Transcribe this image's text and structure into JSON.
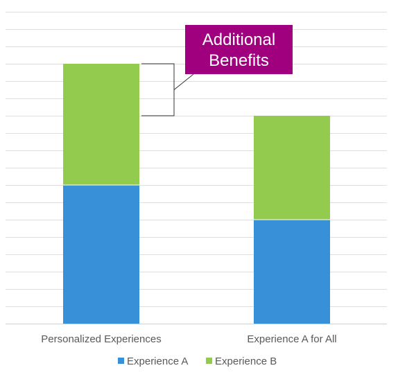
{
  "chart_data": {
    "type": "bar",
    "stacked": true,
    "categories": [
      "Personalized Experiences",
      "Experience A for All"
    ],
    "series": [
      {
        "name": "Experience A",
        "values": [
          8,
          6
        ],
        "color": "#3790d8"
      },
      {
        "name": "Experience B",
        "values": [
          7,
          6
        ],
        "color": "#92cb4d"
      }
    ],
    "ylim": [
      0,
      18
    ],
    "grid": true,
    "legend_position": "bottom",
    "callout": {
      "lines": [
        "Additional",
        "Benefits"
      ],
      "color": "#a0007d"
    },
    "title": "",
    "xlabel": "",
    "ylabel": ""
  }
}
